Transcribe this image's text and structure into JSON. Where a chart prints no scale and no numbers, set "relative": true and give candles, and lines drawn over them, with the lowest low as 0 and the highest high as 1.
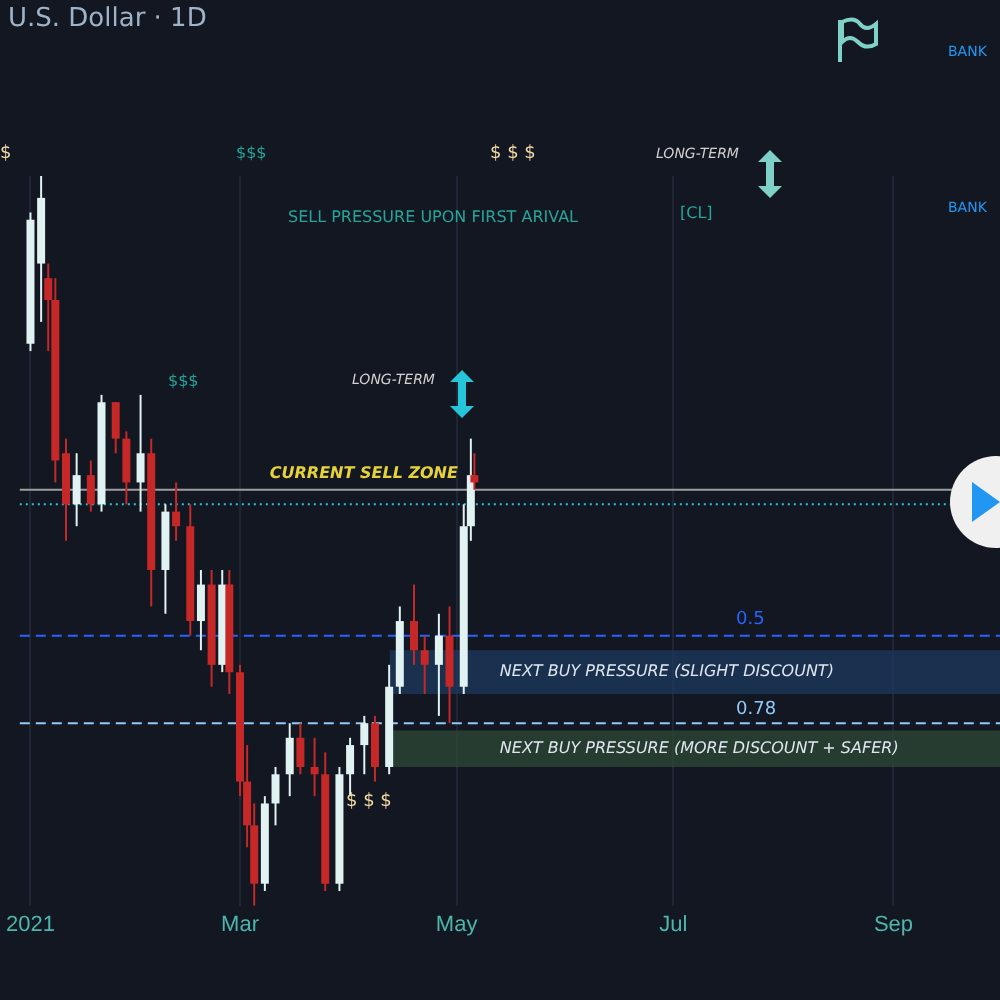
{
  "chart_data": {
    "type": "candlestick",
    "title": "U.S. Dollar · 1D",
    "relative": true,
    "grid": "x",
    "x": [
      "2021-01-01",
      "2021-01-04",
      "2021-01-06",
      "2021-01-08",
      "2021-01-11",
      "2021-01-14",
      "2021-01-18",
      "2021-01-21",
      "2021-01-25",
      "2021-01-28",
      "2021-02-01",
      "2021-02-04",
      "2021-02-08",
      "2021-02-11",
      "2021-02-15",
      "2021-02-18",
      "2021-02-21",
      "2021-02-24",
      "2021-02-26",
      "2021-03-01",
      "2021-03-03",
      "2021-03-05",
      "2021-03-08",
      "2021-03-11",
      "2021-03-15",
      "2021-03-18",
      "2021-03-22",
      "2021-03-25",
      "2021-03-29",
      "2021-04-01",
      "2021-04-05",
      "2021-04-08",
      "2021-04-12",
      "2021-04-15",
      "2021-04-19",
      "2021-04-22",
      "2021-04-26",
      "2021-04-29",
      "2021-05-03",
      "2021-05-05",
      "2021-05-06"
    ],
    "ohlc": [
      [
        0.77,
        0.95,
        0.76,
        0.94
      ],
      [
        0.88,
        1.0,
        0.8,
        0.97
      ],
      [
        0.86,
        0.88,
        0.76,
        0.83
      ],
      [
        0.83,
        0.86,
        0.58,
        0.61
      ],
      [
        0.62,
        0.64,
        0.5,
        0.55
      ],
      [
        0.55,
        0.62,
        0.52,
        0.59
      ],
      [
        0.59,
        0.61,
        0.54,
        0.55
      ],
      [
        0.55,
        0.7,
        0.54,
        0.69
      ],
      [
        0.69,
        0.69,
        0.62,
        0.64
      ],
      [
        0.64,
        0.65,
        0.55,
        0.58
      ],
      [
        0.58,
        0.7,
        0.54,
        0.62
      ],
      [
        0.62,
        0.64,
        0.41,
        0.46
      ],
      [
        0.46,
        0.55,
        0.4,
        0.54
      ],
      [
        0.54,
        0.58,
        0.5,
        0.52
      ],
      [
        0.52,
        0.55,
        0.37,
        0.39
      ],
      [
        0.39,
        0.46,
        0.35,
        0.44
      ],
      [
        0.44,
        0.46,
        0.3,
        0.33
      ],
      [
        0.33,
        0.46,
        0.32,
        0.44
      ],
      [
        0.44,
        0.46,
        0.29,
        0.32
      ],
      [
        0.32,
        0.33,
        0.15,
        0.17
      ],
      [
        0.17,
        0.22,
        0.08,
        0.11
      ],
      [
        0.11,
        0.14,
        0.0,
        0.03
      ],
      [
        0.03,
        0.15,
        0.02,
        0.14
      ],
      [
        0.14,
        0.19,
        0.11,
        0.18
      ],
      [
        0.18,
        0.25,
        0.15,
        0.23
      ],
      [
        0.23,
        0.25,
        0.18,
        0.19
      ],
      [
        0.19,
        0.23,
        0.15,
        0.18
      ],
      [
        0.18,
        0.21,
        0.02,
        0.03
      ],
      [
        0.03,
        0.19,
        0.02,
        0.18
      ],
      [
        0.18,
        0.23,
        0.15,
        0.22
      ],
      [
        0.22,
        0.26,
        0.18,
        0.25
      ],
      [
        0.25,
        0.26,
        0.17,
        0.19
      ],
      [
        0.19,
        0.33,
        0.18,
        0.3
      ],
      [
        0.3,
        0.41,
        0.29,
        0.39
      ],
      [
        0.39,
        0.44,
        0.33,
        0.35
      ],
      [
        0.35,
        0.37,
        0.29,
        0.33
      ],
      [
        0.33,
        0.4,
        0.26,
        0.37
      ],
      [
        0.37,
        0.41,
        0.25,
        0.3
      ],
      [
        0.3,
        0.55,
        0.29,
        0.52
      ],
      [
        0.52,
        0.64,
        0.5,
        0.59
      ],
      [
        0.59,
        0.62,
        0.57,
        0.58
      ]
    ],
    "colors": [
      "#e0f2f1",
      "#e0f2f1",
      "#c62828",
      "#c62828",
      "#c62828",
      "#e0f2f1",
      "#c62828",
      "#e0f2f1",
      "#c62828",
      "#c62828",
      "#e0f2f1",
      "#c62828",
      "#e0f2f1",
      "#c62828",
      "#c62828",
      "#e0f2f1",
      "#c62828",
      "#e0f2f1",
      "#c62828",
      "#c62828",
      "#c62828",
      "#c62828",
      "#e0f2f1",
      "#e0f2f1",
      "#e0f2f1",
      "#c62828",
      "#c62828",
      "#c62828",
      "#e0f2f1",
      "#e0f2f1",
      "#e0f2f1",
      "#c62828",
      "#e0f2f1",
      "#e0f2f1",
      "#c62828",
      "#c62828",
      "#e0f2f1",
      "#c62828",
      "#e0f2f1",
      "#e0f2f1",
      "#c62828"
    ],
    "xlim": [
      "2020-12-29",
      "2021-10-01"
    ],
    "xticks": [
      {
        "value": "2021-01-01",
        "label": "2021"
      },
      {
        "value": "2021-03-01",
        "label": "Mar"
      },
      {
        "value": "2021-05-01",
        "label": "May"
      },
      {
        "value": "2021-07-01",
        "label": "Jul"
      },
      {
        "value": "2021-09-01",
        "label": "Sep"
      }
    ],
    "ref_lines": [
      {
        "axis": "y",
        "value": 0.57,
        "label": "CURRENT SELL ZONE",
        "color": "#9e9e9e",
        "line_style": "solid"
      },
      {
        "axis": "y",
        "value": 0.55,
        "label": null,
        "color": "#26c6da",
        "line_style": "dotted"
      },
      {
        "axis": "y",
        "value": 0.37,
        "label": null,
        "color": "#2962ff",
        "line_style": "dashed"
      },
      {
        "axis": "y",
        "value": 0.25,
        "label": null,
        "color": "#90caf9",
        "line_style": "dashed"
      }
    ],
    "bands": [
      {
        "axis": "y",
        "from": 0.29,
        "to": 0.35,
        "label": "NEXT BUY PRESSURE (SLIGHT DISCOUNT)",
        "color": "#1e3a5f"
      },
      {
        "axis": "y",
        "from": 0.19,
        "to": 0.24,
        "label": "NEXT BUY PRESSURE (MORE DISCOUNT + SAFER)",
        "color": "#2e4a35"
      }
    ],
    "annotations": [
      "$",
      "$$$",
      "$ $ $",
      "LONG-TERM",
      "SELL PRESSURE UPON FIRST ARIVAL",
      "[CL]",
      "BANK",
      "BANK",
      "$$$",
      "LONG-TERM",
      "$ $ $",
      "0.5",
      "0.78"
    ]
  }
}
